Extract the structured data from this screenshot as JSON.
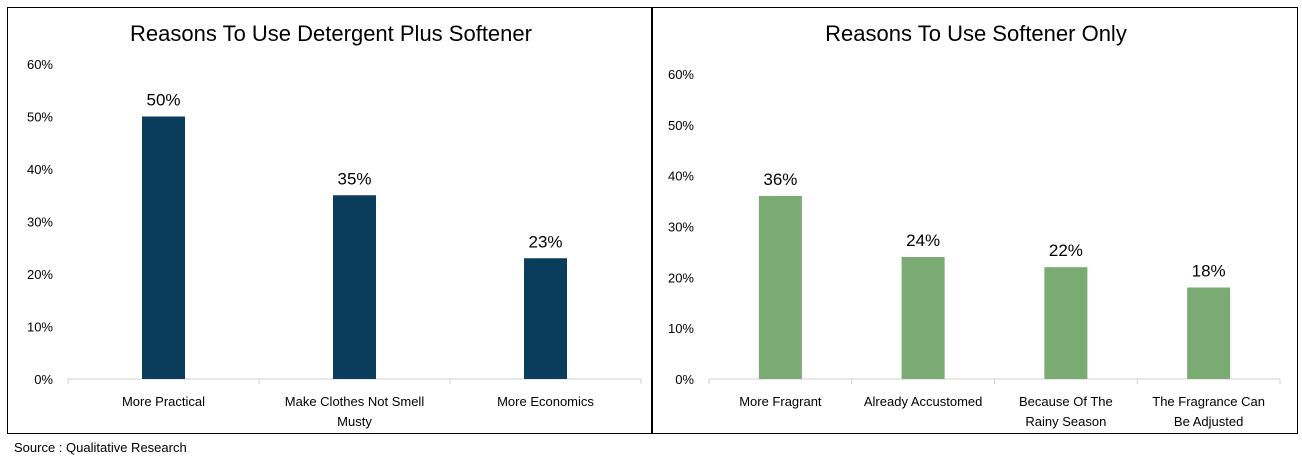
{
  "colors": {
    "left_bar": "#0a3c5c",
    "right_bar": "#7aab72",
    "axis": "#d0d0d0"
  },
  "source": "Source : Qualitative Research",
  "chart_data": [
    {
      "type": "bar",
      "title": "Reasons To Use Detergent Plus Softener",
      "categories": [
        [
          "More Practical"
        ],
        [
          "Make Clothes Not Smell",
          "Musty"
        ],
        [
          "More Economics"
        ]
      ],
      "values": [
        50,
        35,
        23
      ],
      "data_labels": [
        "50%",
        "35%",
        "23%"
      ],
      "yticks": [
        "0%",
        "10%",
        "20%",
        "30%",
        "40%",
        "50%",
        "60%"
      ],
      "ylim": [
        0,
        60
      ],
      "grid": false
    },
    {
      "type": "bar",
      "title": "Reasons To Use Softener Only",
      "categories": [
        [
          "More Fragrant"
        ],
        [
          "Already Accustomed"
        ],
        [
          "Because Of The",
          "Rainy Season"
        ],
        [
          "The Fragrance Can",
          "Be Adjusted"
        ]
      ],
      "values": [
        36,
        24,
        22,
        18
      ],
      "data_labels": [
        "36%",
        "24%",
        "22%",
        "18%"
      ],
      "yticks": [
        "0%",
        "10%",
        "20%",
        "30%",
        "40%",
        "50%",
        "60%"
      ],
      "ylim": [
        0,
        60
      ],
      "grid": false
    }
  ]
}
